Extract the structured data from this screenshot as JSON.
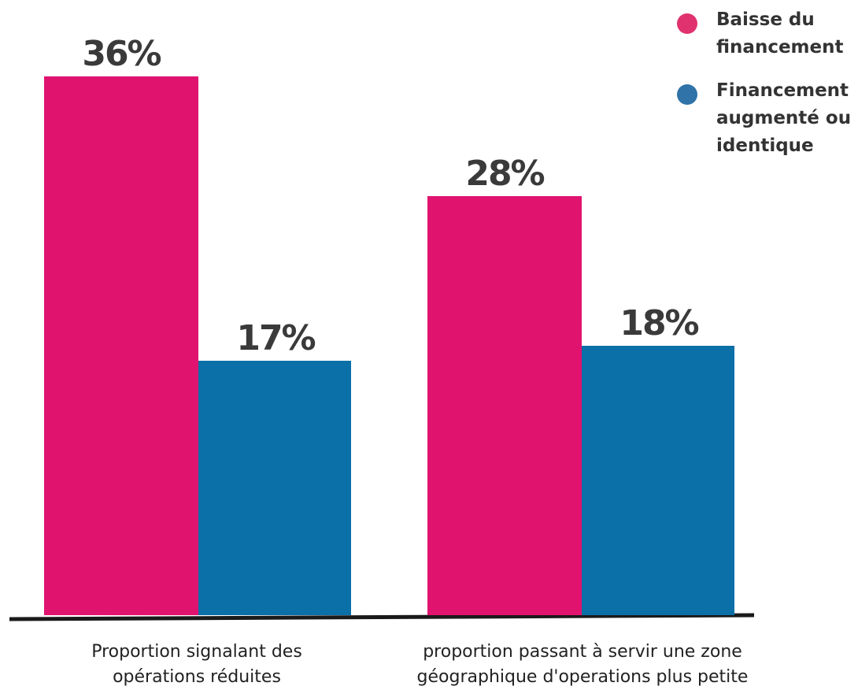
{
  "chart_data": {
    "type": "bar",
    "categories": [
      "Proportion signalant des\nopérations réduites",
      "proportion passant à servir une zone\ngéographique d'operations plus petite"
    ],
    "series": [
      {
        "name": "Baisse du\nfinancement",
        "values": [
          36,
          28
        ],
        "labels": [
          "36%",
          "28%"
        ],
        "color": "#e0136f"
      },
      {
        "name": "Financement\naugmenté ou\nidentique",
        "values": [
          17,
          18
        ],
        "labels": [
          "17%",
          "18%"
        ],
        "color": "#0b6fa8"
      }
    ],
    "ylim": [
      0,
      36
    ],
    "legend_position": "top-right",
    "grid": false
  },
  "colors": {
    "legend_pink": "#e0326f",
    "legend_blue": "#2f73a8",
    "baseline": "#1a1a1a"
  }
}
